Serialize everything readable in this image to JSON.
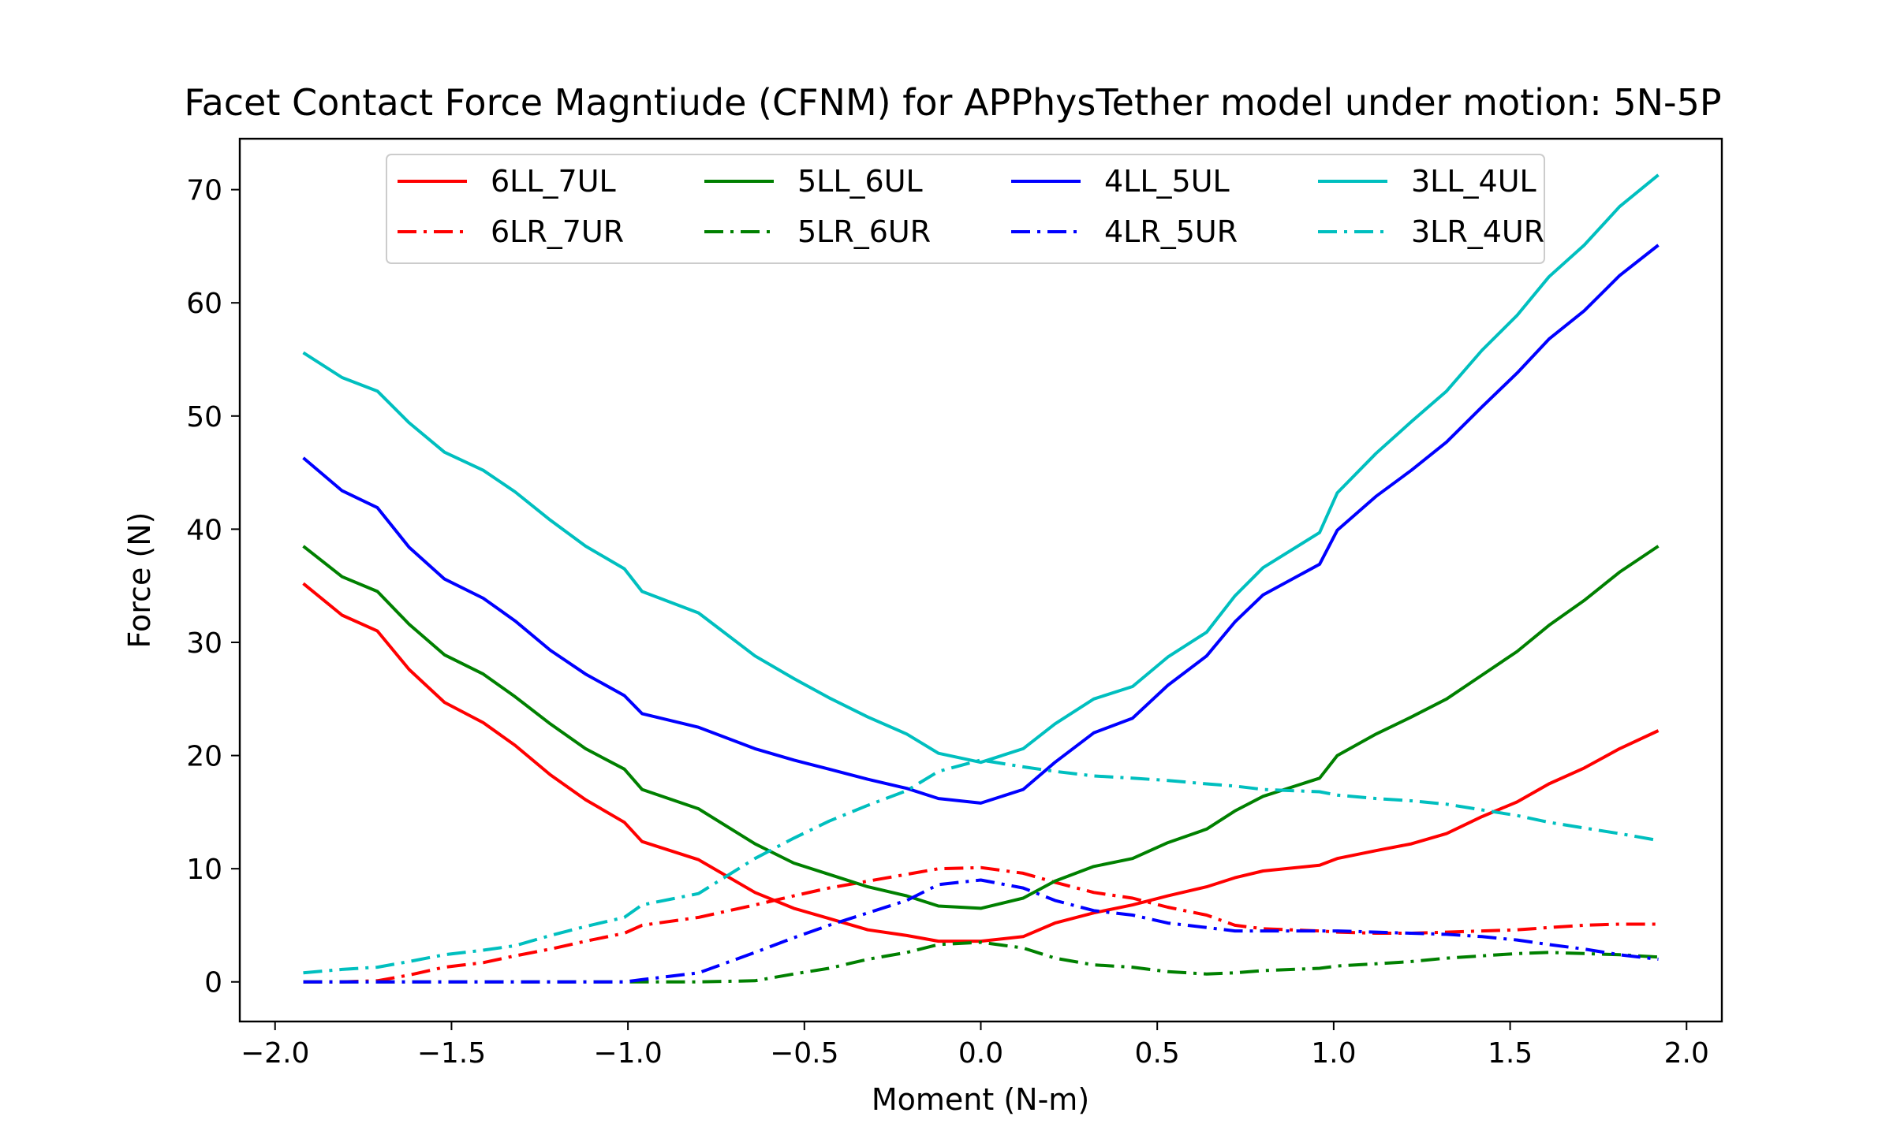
{
  "chart_data": {
    "type": "line",
    "title": "Facet Contact Force Magntiude (CFNM) for APPhysTether model under motion: 5N-5P",
    "xlabel": "Moment (N-m)",
    "ylabel": "Force (N)",
    "xlim": [
      -2.1,
      2.1
    ],
    "ylim": [
      -3.5,
      74.5
    ],
    "xticks": [
      -2.0,
      -1.5,
      -1.0,
      -0.5,
      0.0,
      0.5,
      1.0,
      1.5,
      2.0
    ],
    "xtick_labels": [
      "−2.0",
      "−1.5",
      "−1.0",
      "−0.5",
      "0.0",
      "0.5",
      "1.0",
      "1.5",
      "2.0"
    ],
    "yticks": [
      0,
      10,
      20,
      30,
      40,
      50,
      60,
      70
    ],
    "ytick_labels": [
      "0",
      "10",
      "20",
      "30",
      "40",
      "50",
      "60",
      "70"
    ],
    "grid": false,
    "legend_position": "top-center",
    "legend_columns": 4,
    "x": [
      -1.92,
      -1.81,
      -1.71,
      -1.62,
      -1.52,
      -1.41,
      -1.32,
      -1.22,
      -1.12,
      -1.01,
      -0.96,
      -0.8,
      -0.64,
      -0.53,
      -0.43,
      -0.32,
      -0.21,
      -0.12,
      0.0,
      0.12,
      0.21,
      0.32,
      0.43,
      0.53,
      0.64,
      0.72,
      0.8,
      0.96,
      1.01,
      1.12,
      1.22,
      1.32,
      1.42,
      1.52,
      1.61,
      1.71,
      1.81,
      1.92
    ],
    "series": [
      {
        "name": "6LL_7UL",
        "color": "#ff0000",
        "style": "solid",
        "values": [
          35.2,
          32.4,
          31.0,
          27.6,
          24.7,
          22.9,
          20.9,
          18.3,
          16.1,
          14.1,
          12.4,
          10.8,
          7.9,
          6.5,
          5.6,
          4.6,
          4.1,
          3.6,
          3.6,
          4.0,
          5.2,
          6.1,
          6.8,
          7.6,
          8.4,
          9.2,
          9.8,
          10.3,
          10.9,
          11.6,
          12.2,
          13.1,
          14.6,
          15.9,
          17.5,
          18.9,
          20.6,
          22.2
        ]
      },
      {
        "name": "6LR_7UR",
        "color": "#ff0000",
        "style": "dashdot",
        "values": [
          0.0,
          0.0,
          0.1,
          0.6,
          1.3,
          1.7,
          2.3,
          2.9,
          3.6,
          4.3,
          5.0,
          5.7,
          6.8,
          7.6,
          8.3,
          8.9,
          9.5,
          10.0,
          10.1,
          9.6,
          8.8,
          7.9,
          7.4,
          6.6,
          5.9,
          5.0,
          4.7,
          4.5,
          4.4,
          4.3,
          4.3,
          4.4,
          4.5,
          4.6,
          4.8,
          5.0,
          5.1,
          5.1
        ]
      },
      {
        "name": "5LL_6UL",
        "color": "#008000",
        "style": "solid",
        "values": [
          38.5,
          35.8,
          34.5,
          31.6,
          28.9,
          27.2,
          25.2,
          22.8,
          20.6,
          18.8,
          17.0,
          15.3,
          12.2,
          10.5,
          9.5,
          8.4,
          7.6,
          6.7,
          6.5,
          7.4,
          8.9,
          10.2,
          10.9,
          12.3,
          13.5,
          15.1,
          16.4,
          18.0,
          20.0,
          21.9,
          23.4,
          25.0,
          27.1,
          29.2,
          31.5,
          33.7,
          36.2,
          38.5
        ]
      },
      {
        "name": "5LR_6UR",
        "color": "#008000",
        "style": "dashdot",
        "values": [
          0.0,
          0.0,
          0.0,
          0.0,
          0.0,
          0.0,
          0.0,
          0.0,
          0.0,
          0.0,
          0.0,
          0.0,
          0.1,
          0.7,
          1.2,
          2.0,
          2.6,
          3.3,
          3.5,
          3.0,
          2.1,
          1.5,
          1.3,
          0.9,
          0.7,
          0.8,
          1.0,
          1.2,
          1.4,
          1.6,
          1.8,
          2.1,
          2.3,
          2.5,
          2.6,
          2.5,
          2.4,
          2.2
        ]
      },
      {
        "name": "4LL_5UL",
        "color": "#0000ff",
        "style": "solid",
        "values": [
          46.3,
          43.4,
          41.9,
          38.4,
          35.6,
          33.9,
          31.9,
          29.3,
          27.2,
          25.3,
          23.7,
          22.5,
          20.6,
          19.6,
          18.8,
          17.9,
          17.1,
          16.2,
          15.8,
          17.0,
          19.4,
          22.0,
          23.3,
          26.2,
          28.8,
          31.8,
          34.2,
          36.9,
          39.9,
          42.9,
          45.2,
          47.7,
          50.8,
          53.8,
          56.8,
          59.3,
          62.4,
          65.1
        ]
      },
      {
        "name": "4LR_5UR",
        "color": "#0000ff",
        "style": "dashdot",
        "values": [
          0.0,
          0.0,
          0.0,
          0.0,
          0.0,
          0.0,
          0.0,
          0.0,
          0.0,
          0.0,
          0.2,
          0.8,
          2.6,
          3.9,
          5.0,
          6.1,
          7.2,
          8.6,
          9.0,
          8.3,
          7.2,
          6.3,
          5.9,
          5.2,
          4.8,
          4.5,
          4.5,
          4.5,
          4.5,
          4.4,
          4.3,
          4.2,
          4.0,
          3.7,
          3.3,
          2.9,
          2.4,
          2.0
        ]
      },
      {
        "name": "3LL_4UL",
        "color": "#00bfbf",
        "style": "solid",
        "values": [
          55.6,
          53.4,
          52.2,
          49.4,
          46.8,
          45.2,
          43.3,
          40.8,
          38.5,
          36.5,
          34.5,
          32.6,
          28.8,
          26.8,
          25.1,
          23.4,
          21.9,
          20.2,
          19.4,
          20.6,
          22.8,
          25.0,
          26.1,
          28.7,
          30.9,
          34.1,
          36.6,
          39.7,
          43.2,
          46.7,
          49.5,
          52.2,
          55.8,
          58.9,
          62.3,
          65.1,
          68.5,
          71.3
        ]
      },
      {
        "name": "3LR_4UR",
        "color": "#00bfbf",
        "style": "dashdot",
        "values": [
          0.8,
          1.1,
          1.3,
          1.8,
          2.4,
          2.8,
          3.2,
          4.1,
          4.9,
          5.7,
          6.8,
          7.8,
          10.9,
          12.7,
          14.2,
          15.6,
          16.9,
          18.6,
          19.6,
          19.0,
          18.6,
          18.2,
          18.0,
          17.8,
          17.5,
          17.3,
          17.0,
          16.8,
          16.5,
          16.2,
          16.0,
          15.7,
          15.2,
          14.7,
          14.1,
          13.6,
          13.1,
          12.5
        ]
      }
    ]
  }
}
